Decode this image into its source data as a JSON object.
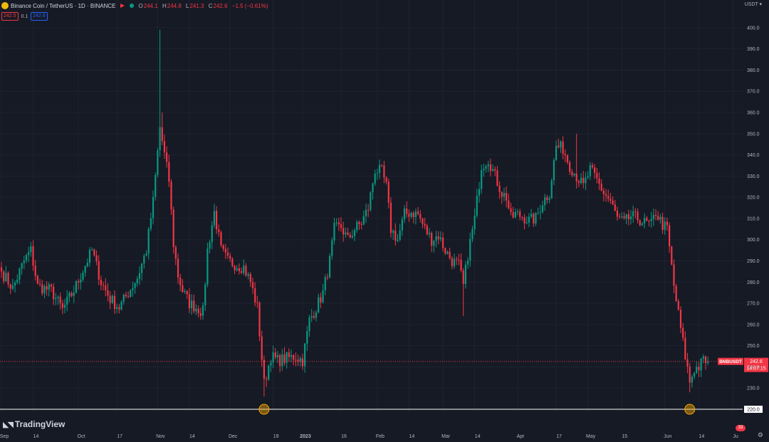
{
  "header": {
    "title": "Binance Coin / TetherUS · 1D · BINANCE",
    "ohlc": [
      {
        "k": "O",
        "v": "244.1"
      },
      {
        "k": "H",
        "v": "244.8"
      },
      {
        "k": "L",
        "v": "241.3"
      },
      {
        "k": "C",
        "v": "242.6"
      },
      {
        "k": "",
        "v": "−1.5 (−0.61%)"
      }
    ],
    "bid": "242.5",
    "spread": "0.1",
    "ask": "242.6"
  },
  "currency_label": "USDT",
  "brand": "TradingView",
  "badge_count": "33",
  "colors": {
    "up": "#089981",
    "down": "#f23645",
    "bg": "#161a25",
    "grid": "#1f2330",
    "level": "#ffffff",
    "marker": "#f7a600"
  },
  "chart_data": {
    "type": "candlestick",
    "symbol": "BNBUSDT",
    "y_ticks": [
      230,
      240,
      250,
      260,
      270,
      280,
      290,
      300,
      310,
      320,
      330,
      340,
      350,
      360,
      370,
      380,
      390,
      400
    ],
    "y_tick_labels": [
      "230.0",
      "240.0",
      "250.0",
      "260.0",
      "270.0",
      "280.0",
      "290.0",
      "300.0",
      "310.0",
      "320.0",
      "330.0",
      "340.0",
      "350.0",
      "360.0",
      "370.0",
      "380.0",
      "390.0",
      "400.0"
    ],
    "ylim": [
      219,
      405
    ],
    "x_labels": [
      "Sep",
      "14",
      "Oct",
      "17",
      "Nov",
      "14",
      "Dec",
      "19",
      "2023",
      "16",
      "Feb",
      "14",
      "Mar",
      "14",
      "Apr",
      "17",
      "May",
      "15",
      "Jun",
      "14",
      "Ju"
    ],
    "x_label_index": [
      0,
      14,
      34,
      51,
      69,
      83,
      101,
      120,
      133,
      150,
      166,
      180,
      195,
      209,
      228,
      245,
      259,
      274,
      293,
      308,
      323
    ],
    "last_price": {
      "label": "BNBUSDT",
      "value": "242.6",
      "countdown": "14:07:15",
      "price": 242.6
    },
    "level": {
      "value": "220.0",
      "price": 220.0
    },
    "markers": [
      {
        "index": 116,
        "price": 220
      },
      {
        "index": 304,
        "price": 220
      }
    ],
    "waypoints": [
      [
        0,
        285
      ],
      [
        5,
        277
      ],
      [
        10,
        290
      ],
      [
        13,
        295
      ],
      [
        16,
        278
      ],
      [
        22,
        276
      ],
      [
        27,
        267
      ],
      [
        32,
        276
      ],
      [
        37,
        288
      ],
      [
        40,
        295
      ],
      [
        44,
        280
      ],
      [
        48,
        272
      ],
      [
        52,
        268
      ],
      [
        56,
        275
      ],
      [
        60,
        282
      ],
      [
        64,
        295
      ],
      [
        67,
        318
      ],
      [
        70,
        353
      ],
      [
        72,
        340
      ],
      [
        74,
        328
      ],
      [
        76,
        298
      ],
      [
        78,
        283
      ],
      [
        80,
        276
      ],
      [
        83,
        270
      ],
      [
        86,
        268
      ],
      [
        89,
        266
      ],
      [
        91,
        295
      ],
      [
        94,
        313
      ],
      [
        97,
        295
      ],
      [
        100,
        290
      ],
      [
        104,
        288
      ],
      [
        107,
        287
      ],
      [
        110,
        280
      ],
      [
        113,
        268
      ],
      [
        116,
        232
      ],
      [
        119,
        245
      ],
      [
        122,
        243
      ],
      [
        126,
        244
      ],
      [
        130,
        245
      ],
      [
        133,
        243
      ],
      [
        136,
        262
      ],
      [
        139,
        268
      ],
      [
        142,
        275
      ],
      [
        145,
        290
      ],
      [
        147,
        305
      ],
      [
        150,
        306
      ],
      [
        153,
        300
      ],
      [
        156,
        305
      ],
      [
        159,
        308
      ],
      [
        162,
        315
      ],
      [
        165,
        333
      ],
      [
        168,
        332
      ],
      [
        170,
        325
      ],
      [
        172,
        305
      ],
      [
        175,
        300
      ],
      [
        178,
        312
      ],
      [
        181,
        313
      ],
      [
        184,
        312
      ],
      [
        187,
        305
      ],
      [
        190,
        300
      ],
      [
        193,
        302
      ],
      [
        196,
        295
      ],
      [
        199,
        290
      ],
      [
        202,
        288
      ],
      [
        204,
        278
      ],
      [
        206,
        293
      ],
      [
        209,
        310
      ],
      [
        212,
        335
      ],
      [
        215,
        338
      ],
      [
        218,
        330
      ],
      [
        221,
        322
      ],
      [
        223,
        320
      ],
      [
        225,
        310
      ],
      [
        227,
        312
      ],
      [
        230,
        311
      ],
      [
        233,
        309
      ],
      [
        236,
        310
      ],
      [
        239,
        318
      ],
      [
        242,
        322
      ],
      [
        245,
        344
      ],
      [
        248,
        343
      ],
      [
        251,
        335
      ],
      [
        254,
        330
      ],
      [
        257,
        325
      ],
      [
        260,
        333
      ],
      [
        263,
        328
      ],
      [
        266,
        322
      ],
      [
        269,
        318
      ],
      [
        272,
        310
      ],
      [
        275,
        308
      ],
      [
        278,
        311
      ],
      [
        281,
        310
      ],
      [
        284,
        308
      ],
      [
        287,
        307
      ],
      [
        289,
        313
      ],
      [
        292,
        307
      ],
      [
        294,
        305
      ],
      [
        297,
        278
      ],
      [
        300,
        258
      ],
      [
        302,
        245
      ],
      [
        304,
        233
      ],
      [
        306,
        239
      ],
      [
        308,
        240
      ],
      [
        310,
        243
      ],
      [
        312,
        242.6
      ]
    ]
  }
}
